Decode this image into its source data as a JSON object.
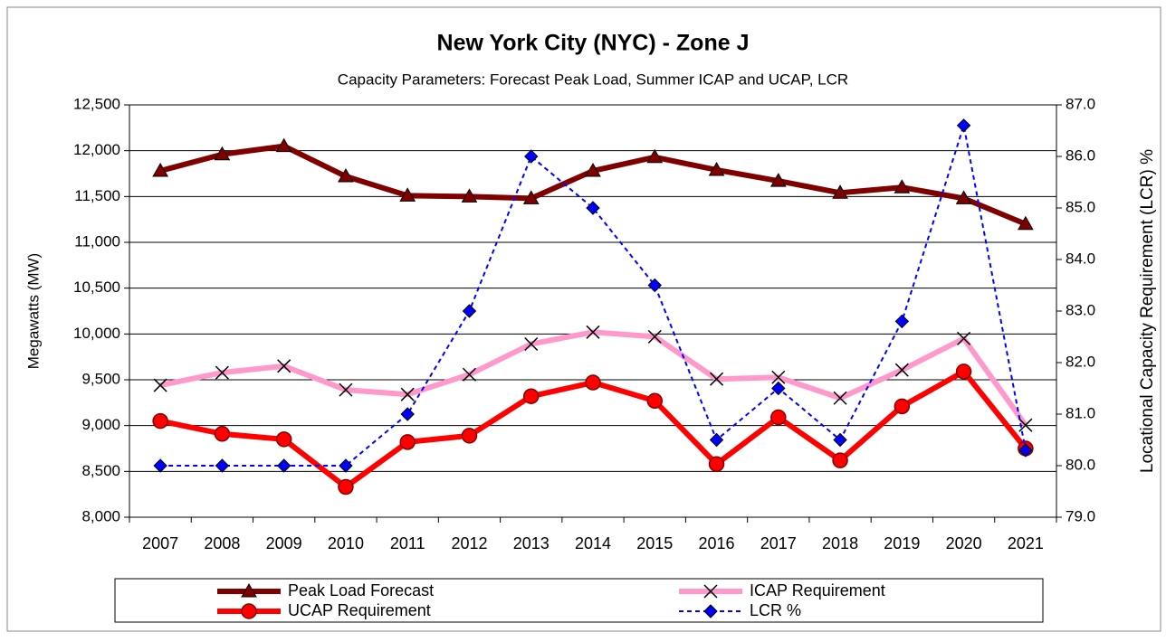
{
  "chart_data": {
    "type": "line",
    "title": "New York City (NYC) - Zone J",
    "subtitle": "Capacity Parameters: Forecast Peak Load, Summer ICAP and UCAP, LCR",
    "ylabel": "Megawatts (MW)",
    "y2label": "Locational Capacity Requirement (LCR) %",
    "categories": [
      "2007",
      "2008",
      "2009",
      "2010",
      "2011",
      "2012",
      "2013",
      "2014",
      "2015",
      "2016",
      "2017",
      "2018",
      "2019",
      "2020",
      "2021"
    ],
    "ylim": [
      8000,
      12500
    ],
    "yticks": [
      {
        "value": 8000,
        "label": "8,000"
      },
      {
        "value": 8500,
        "label": "8,500"
      },
      {
        "value": 9000,
        "label": "9,000"
      },
      {
        "value": 9500,
        "label": "9,500"
      },
      {
        "value": 10000,
        "label": "10,000"
      },
      {
        "value": 10500,
        "label": "10,500"
      },
      {
        "value": 11000,
        "label": "11,000"
      },
      {
        "value": 11500,
        "label": "11,500"
      },
      {
        "value": 12000,
        "label": "12,000"
      },
      {
        "value": 12500,
        "label": "12,500"
      }
    ],
    "y2lim": [
      79,
      87
    ],
    "y2ticks": [
      {
        "value": 79,
        "label": "79.0"
      },
      {
        "value": 80,
        "label": "80.0"
      },
      {
        "value": 81,
        "label": "81.0"
      },
      {
        "value": 82,
        "label": "82.0"
      },
      {
        "value": 83,
        "label": "83.0"
      },
      {
        "value": 84,
        "label": "84.0"
      },
      {
        "value": 85,
        "label": "85.0"
      },
      {
        "value": 86,
        "label": "86.0"
      },
      {
        "value": 87,
        "label": "87.0"
      }
    ],
    "grid": true,
    "series": [
      {
        "name": "Peak Load Forecast",
        "color": "#800000",
        "marker": "triangle",
        "width": 6,
        "dashed": false,
        "values": [
          11780,
          11960,
          12050,
          11720,
          11510,
          11500,
          11480,
          11780,
          11930,
          11790,
          11670,
          11540,
          11600,
          11480,
          11200
        ]
      },
      {
        "name": "ICAP Requirement",
        "color": "#ff99cc",
        "marker": "x",
        "width": 6,
        "dashed": false,
        "values": [
          9440,
          9578,
          9650,
          9390,
          9340,
          9557,
          9890,
          10020,
          9970,
          9508,
          9527,
          9300,
          9607,
          9950,
          9005
        ]
      },
      {
        "name": "UCAP Requirement",
        "color": "#ff0000",
        "marker": "circle",
        "width": 6,
        "dashed": false,
        "values": [
          9050,
          8910,
          8850,
          8330,
          8820,
          8890,
          9320,
          9470,
          9270,
          8580,
          9090,
          8620,
          9210,
          9590,
          8750
        ]
      },
      {
        "name": "LCR %",
        "color": "#0000ff",
        "marker": "diamond",
        "width": 2,
        "dashed": true,
        "axis": "y2",
        "values": [
          80,
          80,
          80,
          80,
          81,
          83,
          86,
          85,
          83.5,
          80.5,
          81.5,
          80.5,
          82.8,
          86.6,
          80.3
        ]
      }
    ]
  }
}
